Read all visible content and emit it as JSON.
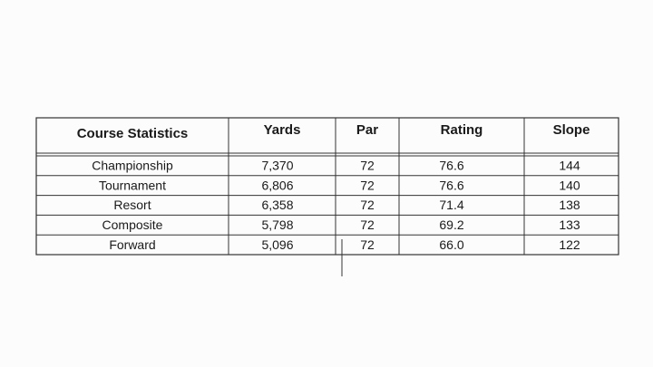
{
  "table": {
    "headers": [
      "Course Statistics",
      "Yards",
      "Par",
      "Rating",
      "Slope"
    ],
    "rows": [
      [
        "Championship",
        "7,370",
        "72",
        "76.6",
        "144"
      ],
      [
        "Tournament",
        "6,806",
        "72",
        "76.6",
        "140"
      ],
      [
        "Resort",
        "6,358",
        "72",
        "71.4",
        "138"
      ],
      [
        "Composite",
        "5,798",
        "72",
        "69.2",
        "133"
      ],
      [
        "Forward",
        "5,096",
        "72",
        "66.0",
        "122"
      ]
    ]
  }
}
